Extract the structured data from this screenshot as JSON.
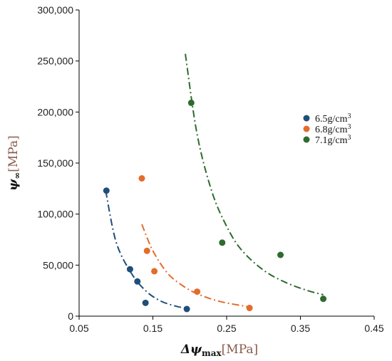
{
  "chart_data": {
    "type": "scatter",
    "xlabel_main": "Δψ",
    "xlabel_sub": "max",
    "xlabel_unit": "[MPa]",
    "ylabel_main": "ψ",
    "ylabel_sub": "∞",
    "ylabel_unit": "[MPa]",
    "xlim": [
      0.05,
      0.45
    ],
    "ylim": [
      0,
      300000
    ],
    "xticks": [
      0.05,
      0.15,
      0.25,
      0.35,
      0.45
    ],
    "xtick_labels": [
      "0.05",
      "0.15",
      "0.25",
      "0.35",
      "0.45"
    ],
    "yticks": [
      0,
      50000,
      100000,
      150000,
      200000,
      250000,
      300000
    ],
    "ytick_labels": [
      "0",
      "50,000",
      "100,000",
      "150,000",
      "200,000",
      "250,000",
      "300,000"
    ],
    "grid": false,
    "legend_position": "right",
    "series": [
      {
        "name": "6.5g/cm",
        "name_sup": "3",
        "color": "#1f4e79",
        "points": [
          [
            0.087,
            123000
          ],
          [
            0.119,
            46000
          ],
          [
            0.129,
            34000
          ],
          [
            0.14,
            13000
          ],
          [
            0.196,
            7000
          ]
        ],
        "fit": [
          [
            0.086,
            123000
          ],
          [
            0.1,
            73000
          ],
          [
            0.12,
            43000
          ],
          [
            0.14,
            25000
          ],
          [
            0.16,
            15000
          ],
          [
            0.18,
            10000
          ],
          [
            0.196,
            7500
          ]
        ]
      },
      {
        "name": "6.8g/cm",
        "name_sup": "3",
        "color": "#e36c2b",
        "points": [
          [
            0.135,
            135000
          ],
          [
            0.142,
            64000
          ],
          [
            0.152,
            44000
          ],
          [
            0.21,
            24000
          ],
          [
            0.281,
            8000
          ]
        ],
        "fit": [
          [
            0.135,
            90000
          ],
          [
            0.15,
            64000
          ],
          [
            0.17,
            42000
          ],
          [
            0.19,
            30000
          ],
          [
            0.21,
            22000
          ],
          [
            0.24,
            14500
          ],
          [
            0.281,
            9000
          ]
        ]
      },
      {
        "name": "7.1g/cm",
        "name_sup": "3",
        "color": "#2e6b2e",
        "points": [
          [
            0.202,
            209000
          ],
          [
            0.244,
            72000
          ],
          [
            0.323,
            60000
          ],
          [
            0.381,
            17000
          ]
        ],
        "fit": [
          [
            0.194,
            257000
          ],
          [
            0.21,
            178000
          ],
          [
            0.23,
            122000
          ],
          [
            0.25,
            88000
          ],
          [
            0.27,
            65000
          ],
          [
            0.3,
            45000
          ],
          [
            0.33,
            33000
          ],
          [
            0.36,
            25000
          ],
          [
            0.381,
            21000
          ]
        ]
      }
    ]
  }
}
